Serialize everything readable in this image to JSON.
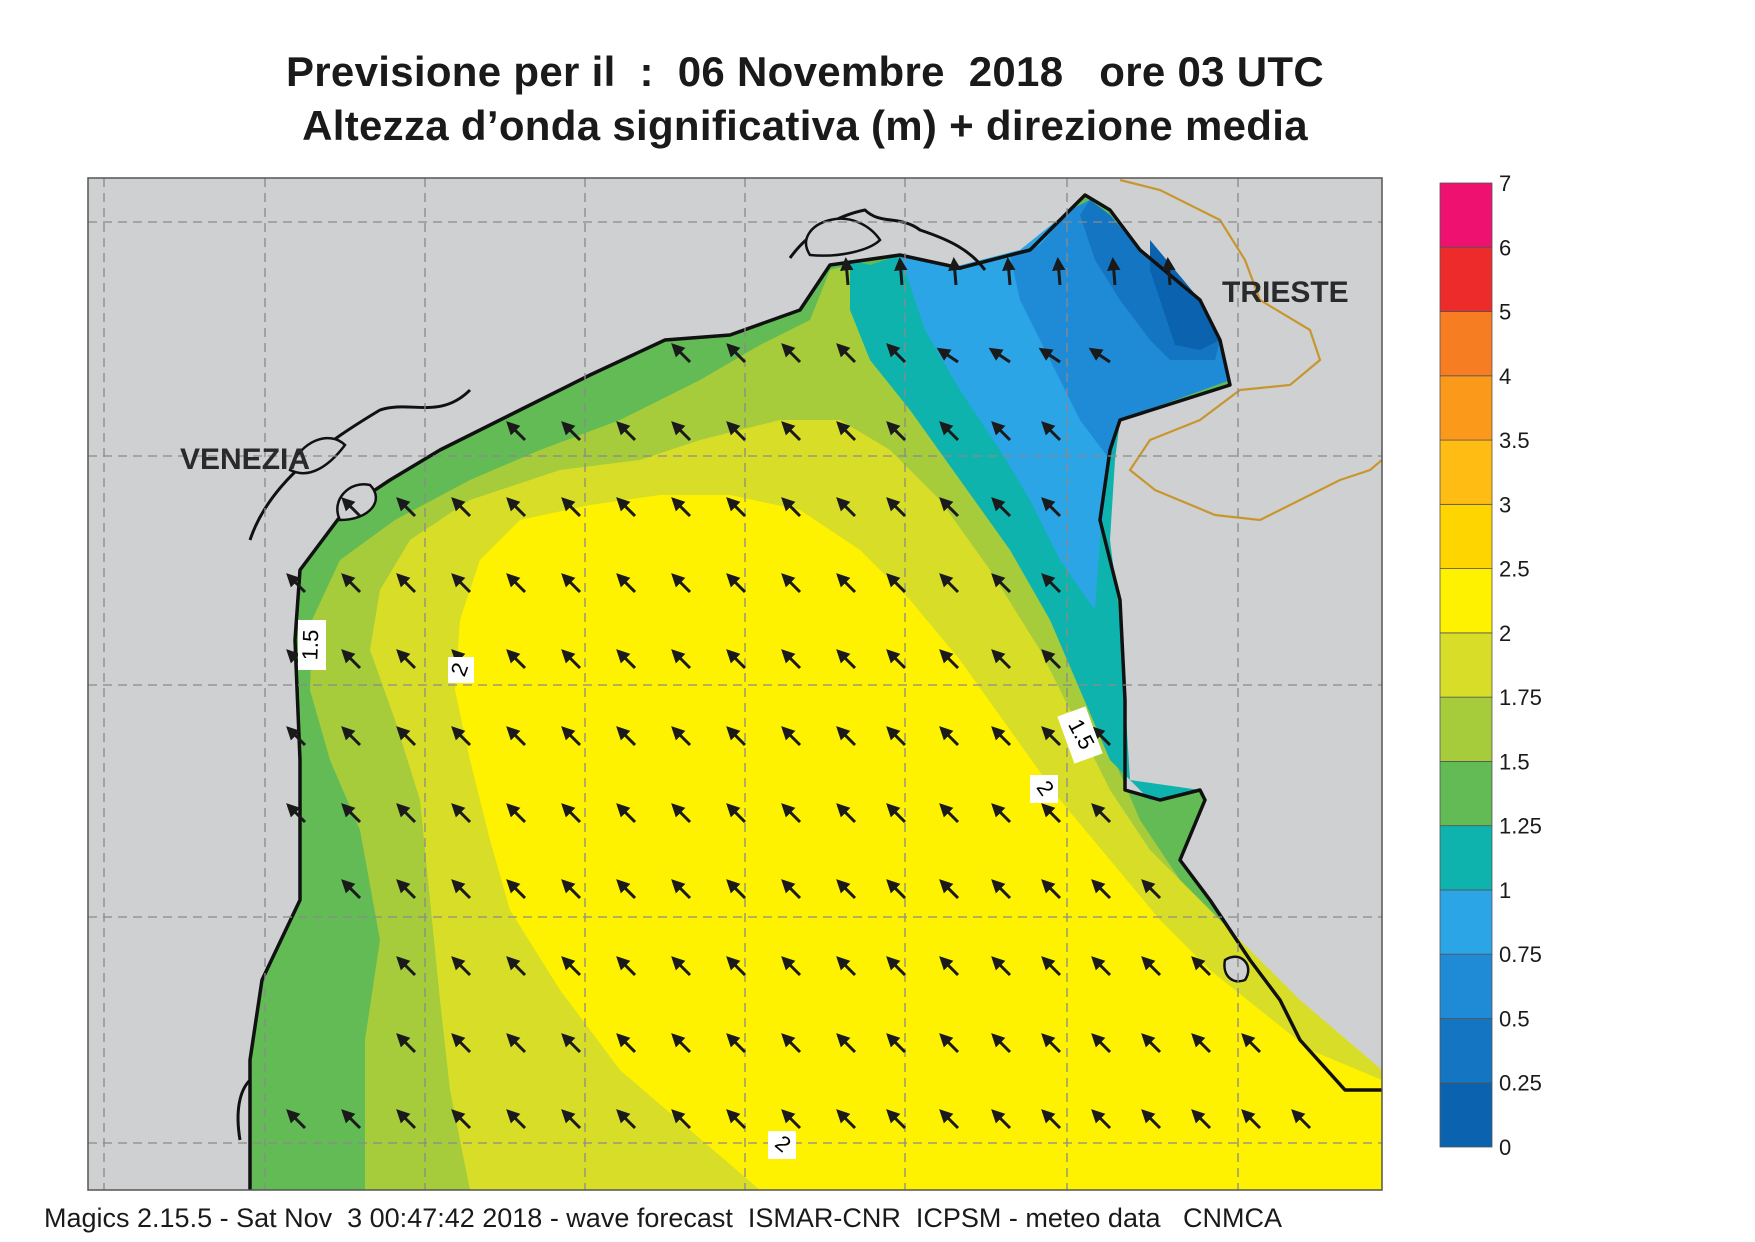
{
  "title": {
    "line1": "Previsione per il  :  06 Novembre  2018   ore 03 UTC",
    "line2": "Altezza d’onda significativa (m) + direzione media"
  },
  "places": {
    "venezia": "VENEZIA",
    "trieste": "TRIESTE"
  },
  "contour_labels": [
    "1.5",
    "2",
    "1.5",
    "2",
    "2"
  ],
  "legend": {
    "ticks": [
      "0",
      "0.25",
      "0.5",
      "0.75",
      "1",
      "1.25",
      "1.5",
      "1.75",
      "2",
      "2.5",
      "3",
      "3.5",
      "4",
      "5",
      "6",
      "7"
    ],
    "colors": [
      "#0b63b0",
      "#1476c3",
      "#1f8ad6",
      "#2ba5e6",
      "#0fb3ae",
      "#63bb55",
      "#a6cc3b",
      "#d8de28",
      "#fff200",
      "#ffd500",
      "#ffbc12",
      "#fb9a1a",
      "#f67d22",
      "#ee2b2b",
      "#ee1170"
    ]
  },
  "field": {
    "mean_direction": "NW",
    "colors": {
      "land": "#cfd0d2",
      "coast": "#111111",
      "border": "#c8962e",
      "grid": "#8a8a8a",
      "arrow": "#1a1a1a"
    }
  },
  "footer": "Magics 2.15.5 - Sat Nov  3 00:47:42 2018 - wave forecast  ISMAR-CNR  ICPSM - meteo data   CNMCA"
}
